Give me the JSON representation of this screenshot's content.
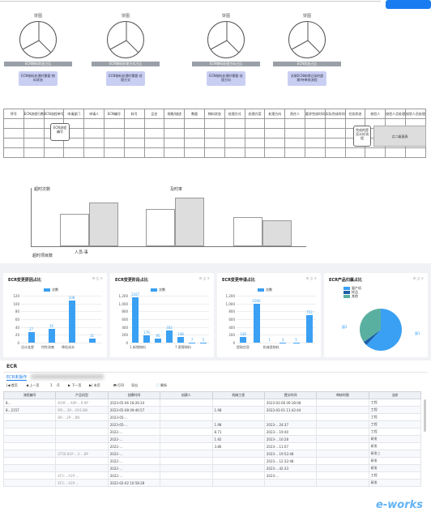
{
  "wire": {
    "pies": [
      {
        "title": "饼图",
        "band": "ECN物料状态占比",
        "note": "ECN物料处理时需要-物料状态"
      },
      {
        "title": "饼图",
        "band": "ECN物料处理方式占比",
        "note": "ECN物料处理时需要-处理方式"
      },
      {
        "title": "饼图",
        "band": "ECN物料处理方向占比",
        "note": "ECN物料处理时需要-处理方向"
      },
      {
        "title": "饼图",
        "band": "ECN状态占比",
        "note": "关联ECN新增记录的超期/待审核流程"
      }
    ],
    "table_headers": [
      "序号",
      "ECN流程行数",
      "ECN流程单号",
      "申请部门",
      "申请人",
      "ECN编号",
      "料号",
      "品名",
      "规格/描述",
      "数量",
      "物料状态",
      "处理方式",
      "处理方案",
      "处理方向",
      "责任人",
      "要求完成时间",
      "实际完成时间",
      "任务状态",
      "校验人",
      "校验人员处理意见",
      "校验人员处理日期"
    ],
    "bubble1": "ECN流程编号",
    "bubble2": "完成的是设计好流程",
    "note_box": "点二级报表",
    "bar_labels": {
      "y1": "超时次数",
      "y2": "及时率",
      "x1": "超时项目数",
      "x2": "人员-事"
    }
  },
  "dash": {
    "card1": {
      "title": "ECR变更原因占比",
      "legend": "次数"
    },
    "card2": {
      "title": "ECR变更阶段占比",
      "legend": "次数"
    },
    "card3": {
      "title": "ECR变更申请占比",
      "legend": "次数"
    },
    "card4": {
      "title": "ECR产品归属占比",
      "legend": [
        "量产机",
        "样品",
        "其他"
      ]
    },
    "controls": "⚙ ◫ ✕"
  },
  "chart_data": [
    {
      "type": "bar",
      "title": "ECR变更原因占比",
      "series": [
        {
          "name": "次数",
          "values": [
            27,
            35,
            108,
            11
          ]
        }
      ],
      "categories": [
        "设计变更",
        "特性改善",
        "降低成本",
        ""
      ],
      "yticks": [
        "0",
        "20",
        "40",
        "60",
        "80",
        "100",
        "120"
      ],
      "ylim": [
        0,
        120
      ]
    },
    {
      "type": "bar",
      "title": "ECR变更阶段占比",
      "series": [
        {
          "name": "次数",
          "values": [
            1167,
            176,
            95,
            302,
            148,
            7,
            5
          ]
        }
      ],
      "categories": [
        "1.新增物料",
        "",
        "",
        "",
        "7.更替物料",
        "",
        ""
      ],
      "yticks": [
        "0",
        "200",
        "400",
        "600",
        "800",
        "1,000",
        "1,200"
      ],
      "ylim": [
        0,
        1200
      ]
    },
    {
      "type": "bar",
      "title": "ECR变更申请占比",
      "series": [
        {
          "name": "次数",
          "values": [
            146,
            1000,
            1,
            3,
            5,
            703
          ]
        }
      ],
      "categories": [
        "提取信息",
        "",
        "机械类物料",
        "",
        "",
        ""
      ],
      "yticks": [
        "0",
        "200",
        "400",
        "600",
        "800",
        "1,000",
        "1,200"
      ],
      "ylim": [
        0,
        1200
      ]
    },
    {
      "type": "pie",
      "title": "ECR产品归属占比",
      "series": [
        {
          "name": "次数",
          "values": [
            62,
            3,
            35
          ]
        }
      ],
      "categories": [
        "量产机",
        "样品",
        "其他"
      ],
      "labels": [
        "量1",
        "量2"
      ]
    }
  ],
  "grid": {
    "title": "ECR",
    "tab": "ECR未操作",
    "toolbar": [
      "|◀ 首页",
      "◀ 上一页",
      "1",
      "/1",
      "▶ 下一页",
      "▶| 末页",
      "🖶 打印",
      "导出",
      "📄 解析"
    ],
    "headers": [
      "流程编号",
      "产品机型",
      "创建时间",
      "创建人",
      "机械工程",
      "提交时间",
      "审核时限",
      "当前"
    ],
    "rows": [
      [
        "8…",
        "819F-…A9P-…R-9P",
        "2023-05-06 18:26:24",
        "",
        "",
        "2023-03-06 09:18:08",
        "",
        "工程"
      ],
      [
        "8…2157",
        "M5-…3P-…RV1-BN",
        "2023-05-08 09:46:57",
        "",
        "1.98",
        "2023-03-01 11:42:44",
        "",
        "工程"
      ],
      [
        "",
        "BR-…2P-…BN",
        "2023-05-…",
        "",
        "",
        "",
        "",
        "工程"
      ],
      [
        "",
        "",
        "2023-05-…",
        "",
        "1.98",
        "2023-…24:37",
        "",
        "工程"
      ],
      [
        "",
        "",
        "2022-…",
        "",
        "8.71",
        "2023-…19:40",
        "",
        "工程"
      ],
      [
        "",
        "",
        "2022-…",
        "",
        "1.92",
        "2023-…10:28",
        "",
        "研发"
      ],
      [
        "",
        "",
        "2022-…",
        "",
        "3.86",
        "2023-…11:07",
        "",
        "研发"
      ],
      [
        "",
        "ST50-81P-…2-…BP",
        "2022-…",
        "",
        "",
        "2023-…19:52:48",
        "",
        "研发三"
      ],
      [
        "",
        "",
        "2022-…",
        "",
        "",
        "2023-…12:32:48",
        "",
        "研发"
      ],
      [
        "",
        "",
        "2022-…",
        "",
        "",
        "2023-…42:33",
        "",
        "研发"
      ],
      [
        "",
        "EF5-…A1P-…",
        "2022-…",
        "",
        "",
        "2023-…",
        "",
        "工程"
      ],
      [
        "",
        "EF5-…A1P-…",
        "2022-02-02 10:58:28",
        "",
        "",
        "",
        "",
        "研发"
      ]
    ]
  },
  "watermark": "e-works"
}
